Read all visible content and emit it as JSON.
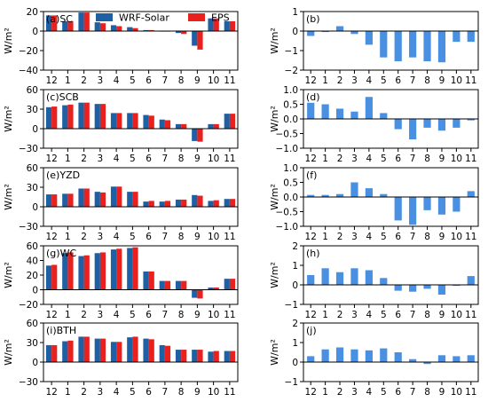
{
  "legend": {
    "items": [
      {
        "label": "WRF-Solar",
        "color": "#1f5fa3"
      },
      {
        "label": "EPS",
        "color": "#e8201e"
      }
    ]
  },
  "colors": {
    "wrf": "#1f5fa3",
    "eps": "#e8201e",
    "diff": "#4a90e2"
  },
  "chart_data": [
    {
      "type": "bar",
      "panel_label": "(a)SC",
      "ylabel": "W/m²",
      "categories": [
        "12",
        "1",
        "2",
        "3",
        "4",
        "5",
        "6",
        "7",
        "8",
        "9",
        "10",
        "11"
      ],
      "ylim": [
        -40,
        20
      ],
      "yticks": [
        -40,
        -20,
        0,
        20
      ],
      "series": [
        {
          "name": "WRF-Solar",
          "values": [
            16,
            10,
            19,
            9,
            6,
            4,
            1,
            0,
            -2,
            -15,
            13,
            10
          ]
        },
        {
          "name": "EPS",
          "values": [
            16,
            10,
            19,
            8,
            5,
            3,
            1,
            0,
            -3,
            -19,
            13,
            10
          ]
        }
      ]
    },
    {
      "type": "bar",
      "panel_label": "(b)",
      "ylabel": "W/m²",
      "categories": [
        "12",
        "1",
        "2",
        "3",
        "4",
        "5",
        "6",
        "7",
        "8",
        "9",
        "10",
        "11"
      ],
      "ylim": [
        -2,
        1
      ],
      "yticks": [
        -2,
        -1,
        0,
        1
      ],
      "series": [
        {
          "values": [
            -0.25,
            -0.05,
            0.25,
            -0.15,
            -0.7,
            -1.35,
            -1.55,
            -1.35,
            -1.55,
            -1.6,
            -0.55,
            -0.55
          ]
        }
      ]
    },
    {
      "type": "bar",
      "panel_label": "(c)SCB",
      "ylabel": "W/m²",
      "categories": [
        "12",
        "1",
        "2",
        "3",
        "4",
        "5",
        "6",
        "7",
        "8",
        "9",
        "10",
        "11"
      ],
      "ylim": [
        -30,
        60
      ],
      "yticks": [
        -30,
        0,
        30,
        60
      ],
      "series": [
        {
          "name": "WRF-Solar",
          "values": [
            33,
            36,
            40,
            38,
            24,
            24,
            21,
            14,
            7,
            -19,
            7,
            23
          ]
        },
        {
          "name": "EPS",
          "values": [
            34,
            37,
            40,
            38,
            24,
            24,
            20,
            13,
            7,
            -20,
            7,
            23
          ]
        }
      ]
    },
    {
      "type": "bar",
      "panel_label": "(d)",
      "ylabel": "W/m²",
      "categories": [
        "12",
        "1",
        "2",
        "3",
        "4",
        "5",
        "6",
        "7",
        "8",
        "9",
        "10",
        "11"
      ],
      "ylim": [
        -1,
        1
      ],
      "yticks": [
        -1.0,
        -0.5,
        0.0,
        0.5,
        1.0
      ],
      "series": [
        {
          "values": [
            0.55,
            0.5,
            0.35,
            0.25,
            0.75,
            0.2,
            -0.35,
            -0.7,
            -0.3,
            -0.4,
            -0.3,
            -0.05
          ]
        }
      ]
    },
    {
      "type": "bar",
      "panel_label": "(e)YZD",
      "ylabel": "W/m²",
      "categories": [
        "12",
        "1",
        "2",
        "3",
        "4",
        "5",
        "6",
        "7",
        "8",
        "9",
        "10",
        "11"
      ],
      "ylim": [
        -30,
        60
      ],
      "yticks": [
        -30,
        0,
        30,
        60
      ],
      "series": [
        {
          "name": "WRF-Solar",
          "values": [
            19,
            20,
            28,
            23,
            31,
            23,
            8,
            8,
            11,
            18,
            9,
            12
          ]
        },
        {
          "name": "EPS",
          "values": [
            19,
            20,
            28,
            22,
            31,
            23,
            9,
            9,
            11,
            17,
            10,
            12
          ]
        }
      ]
    },
    {
      "type": "bar",
      "panel_label": "(f)",
      "ylabel": "W/m²",
      "categories": [
        "12",
        "1",
        "2",
        "3",
        "4",
        "5",
        "6",
        "7",
        "8",
        "9",
        "10",
        "11"
      ],
      "ylim": [
        -1,
        1
      ],
      "yticks": [
        -1.0,
        -0.5,
        0.0,
        0.5,
        1.0
      ],
      "series": [
        {
          "values": [
            0.07,
            0.07,
            0.1,
            0.5,
            0.3,
            0.1,
            -0.8,
            -0.95,
            -0.45,
            -0.6,
            -0.5,
            0.2
          ]
        }
      ]
    },
    {
      "type": "bar",
      "panel_label": "(g)WC",
      "ylabel": "W/m²",
      "categories": [
        "12",
        "1",
        "2",
        "3",
        "4",
        "5",
        "6",
        "7",
        "8",
        "9",
        "10",
        "11"
      ],
      "ylim": [
        -20,
        60
      ],
      "yticks": [
        -20,
        0,
        20,
        40,
        60
      ],
      "series": [
        {
          "name": "WRF-Solar",
          "values": [
            33,
            50,
            46,
            50,
            55,
            57,
            25,
            12,
            12,
            -11,
            3,
            15
          ]
        },
        {
          "name": "EPS",
          "values": [
            34,
            51,
            47,
            51,
            56,
            58,
            25,
            12,
            12,
            -12,
            3,
            15
          ]
        }
      ]
    },
    {
      "type": "bar",
      "panel_label": "(h)",
      "ylabel": "W/m²",
      "categories": [
        "12",
        "1",
        "2",
        "3",
        "4",
        "5",
        "6",
        "7",
        "8",
        "9",
        "10",
        "11"
      ],
      "ylim": [
        -1,
        2
      ],
      "yticks": [
        -1,
        0,
        1,
        2
      ],
      "series": [
        {
          "values": [
            0.5,
            0.85,
            0.65,
            0.85,
            0.75,
            0.35,
            -0.3,
            -0.35,
            -0.2,
            -0.5,
            -0.05,
            0.45
          ]
        }
      ]
    },
    {
      "type": "bar",
      "panel_label": "(i)BTH",
      "ylabel": "W/m²",
      "categories": [
        "12",
        "1",
        "2",
        "3",
        "4",
        "5",
        "6",
        "7",
        "8",
        "9",
        "10",
        "11"
      ],
      "ylim": [
        -30,
        60
      ],
      "yticks": [
        -30,
        0,
        30,
        60
      ],
      "series": [
        {
          "name": "WRF-Solar",
          "values": [
            26,
            32,
            39,
            36,
            31,
            38,
            36,
            26,
            19,
            19,
            16,
            17
          ]
        },
        {
          "name": "EPS",
          "values": [
            26,
            33,
            39,
            36,
            31,
            39,
            35,
            25,
            19,
            19,
            17,
            17
          ]
        }
      ]
    },
    {
      "type": "bar",
      "panel_label": "(j)",
      "ylabel": "W/m²",
      "categories": [
        "12",
        "1",
        "2",
        "3",
        "4",
        "5",
        "6",
        "7",
        "8",
        "9",
        "10",
        "11"
      ],
      "ylim": [
        -1,
        2
      ],
      "yticks": [
        -1,
        0,
        1,
        2
      ],
      "series": [
        {
          "values": [
            0.3,
            0.65,
            0.75,
            0.65,
            0.6,
            0.7,
            0.5,
            0.15,
            -0.1,
            0.35,
            0.3,
            0.35
          ]
        }
      ]
    }
  ]
}
